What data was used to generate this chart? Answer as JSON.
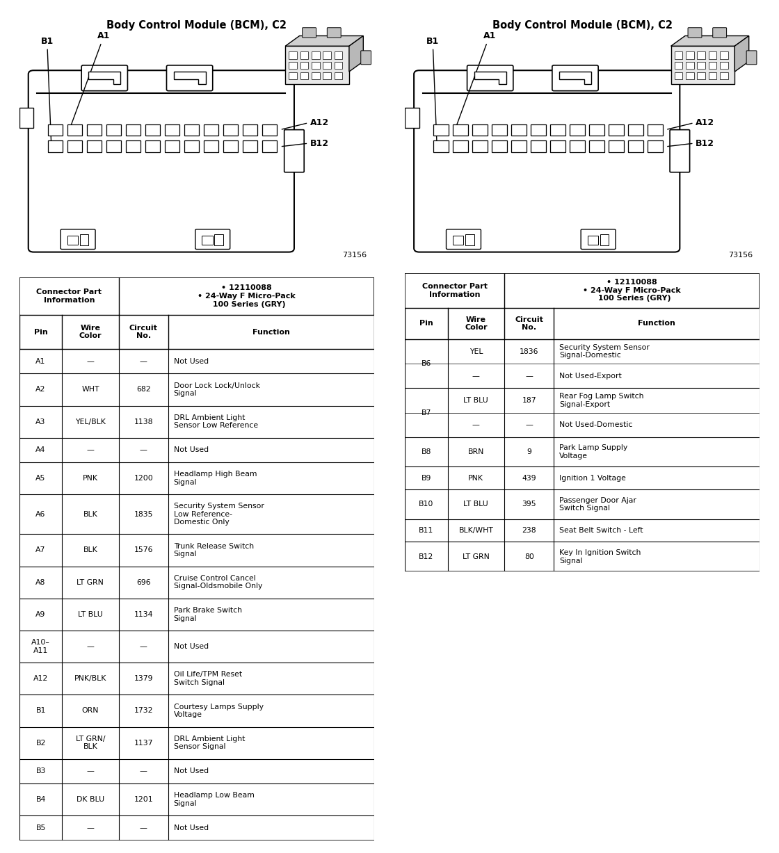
{
  "title": "Body Control Module (BCM), C2",
  "connector_info": "• 12110088\n• 24-Way F Micro-Pack\n  100 Series (GRY)",
  "fig_number": "73156",
  "left_table_data": [
    [
      "A1",
      "—",
      "—",
      "Not Used"
    ],
    [
      "A2",
      "WHT",
      "682",
      "Door Lock Lock/Unlock\nSignal"
    ],
    [
      "A3",
      "YEL/BLK",
      "1138",
      "DRL Ambient Light\nSensor Low Reference"
    ],
    [
      "A4",
      "—",
      "—",
      "Not Used"
    ],
    [
      "A5",
      "PNK",
      "1200",
      "Headlamp High Beam\nSignal"
    ],
    [
      "A6",
      "BLK",
      "1835",
      "Security System Sensor\nLow Reference-\nDomestic Only"
    ],
    [
      "A7",
      "BLK",
      "1576",
      "Trunk Release Switch\nSignal"
    ],
    [
      "A8",
      "LT GRN",
      "696",
      "Cruise Control Cancel\nSignal-Oldsmobile Only"
    ],
    [
      "A9",
      "LT BLU",
      "1134",
      "Park Brake Switch\nSignal"
    ],
    [
      "A10–\nA11",
      "—",
      "—",
      "Not Used"
    ],
    [
      "A12",
      "PNK/BLK",
      "1379",
      "Oil Life/TPM Reset\nSwitch Signal"
    ],
    [
      "B1",
      "ORN",
      "1732",
      "Courtesy Lamps Supply\nVoltage"
    ],
    [
      "B2",
      "LT GRN/\nBLK",
      "1137",
      "DRL Ambient Light\nSensor Signal"
    ],
    [
      "B3",
      "—",
      "—",
      "Not Used"
    ],
    [
      "B4",
      "DK BLU",
      "1201",
      "Headlamp Low Beam\nSignal"
    ],
    [
      "B5",
      "—",
      "—",
      "Not Used"
    ]
  ],
  "right_table_data": [
    [
      "B6",
      "YEL",
      "1836",
      "Security System Sensor\nSignal-Domestic",
      true
    ],
    [
      "",
      "—",
      "—",
      "Not Used-Export",
      false
    ],
    [
      "B7",
      "LT BLU",
      "187",
      "Rear Fog Lamp Switch\nSignal-Export",
      true
    ],
    [
      "",
      "—",
      "—",
      "Not Used-Domestic",
      false
    ],
    [
      "B8",
      "BRN",
      "9",
      "Park Lamp Supply\nVoltage",
      false
    ],
    [
      "B9",
      "PNK",
      "439",
      "Ignition 1 Voltage",
      false
    ],
    [
      "B10",
      "LT BLU",
      "395",
      "Passenger Door Ajar\nSwitch Signal",
      false
    ],
    [
      "B11",
      "BLK/WHT",
      "238",
      "Seat Belt Switch - Left",
      false
    ],
    [
      "B12",
      "LT GRN",
      "80",
      "Key In Ignition Switch\nSignal",
      false
    ]
  ]
}
